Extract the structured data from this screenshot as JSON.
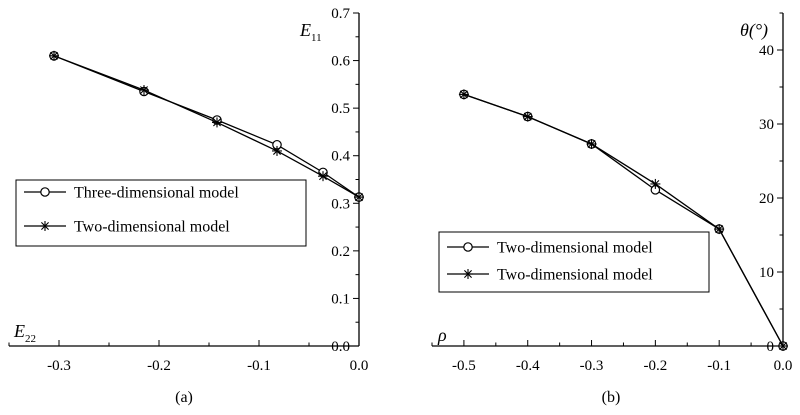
{
  "chart_data": [
    {
      "type": "line",
      "panel_label": "(a)",
      "xlabel": "E",
      "xlabel_sub": "22",
      "ylabel": "E",
      "ylabel_sub": "11",
      "xlim": [
        -0.35,
        0.0
      ],
      "ylim": [
        0.0,
        0.7
      ],
      "xticks": [
        -0.3,
        -0.2,
        -0.1,
        0.0
      ],
      "xtick_labels": [
        "-0.3",
        "-0.2",
        "-0.1",
        "0.0"
      ],
      "yticks": [
        0.0,
        0.1,
        0.2,
        0.3,
        0.4,
        0.5,
        0.6,
        0.7
      ],
      "ytick_labels": [
        "0.0",
        "0.1",
        "0.2",
        "0.3",
        "0.4",
        "0.5",
        "0.6",
        "0.7"
      ],
      "y_axis_side": "right",
      "grid": false,
      "legend_position": "center-left",
      "series": [
        {
          "name": "Three-dimensional model",
          "marker": "circle",
          "x": [
            -0.305,
            -0.215,
            -0.142,
            -0.082,
            -0.036,
            0.0
          ],
          "y": [
            0.61,
            0.535,
            0.475,
            0.423,
            0.365,
            0.313
          ]
        },
        {
          "name": "Two-dimensional model",
          "marker": "asterisk",
          "x": [
            -0.305,
            -0.215,
            -0.142,
            -0.082,
            -0.036,
            0.0
          ],
          "y": [
            0.61,
            0.538,
            0.47,
            0.41,
            0.357,
            0.313
          ]
        }
      ]
    },
    {
      "type": "line",
      "panel_label": "(b)",
      "xlabel": "ρ",
      "ylabel": "θ(°)",
      "xlim": [
        -0.55,
        0.0
      ],
      "ylim": [
        0,
        45
      ],
      "xticks": [
        -0.5,
        -0.4,
        -0.3,
        -0.2,
        -0.1,
        0.0
      ],
      "xtick_labels": [
        "-0.5",
        "-0.4",
        "-0.3",
        "-0.2",
        "-0.1",
        "0.0"
      ],
      "yticks": [
        0,
        10,
        20,
        30,
        40
      ],
      "ytick_labels": [
        "0",
        "10",
        "20",
        "30",
        "40"
      ],
      "y_axis_side": "right",
      "grid": false,
      "legend_position": "bottom-left",
      "series": [
        {
          "name": "Two-dimensional model",
          "marker": "circle",
          "x": [
            -0.5,
            -0.4,
            -0.3,
            -0.2,
            -0.1,
            0.0
          ],
          "y": [
            34,
            31,
            27.3,
            21.1,
            15.8,
            0
          ]
        },
        {
          "name": "Two-dimensional model",
          "marker": "asterisk",
          "x": [
            -0.5,
            -0.4,
            -0.3,
            -0.2,
            -0.1,
            0.0
          ],
          "y": [
            34,
            31,
            27.3,
            21.9,
            15.8,
            0
          ]
        }
      ]
    }
  ]
}
